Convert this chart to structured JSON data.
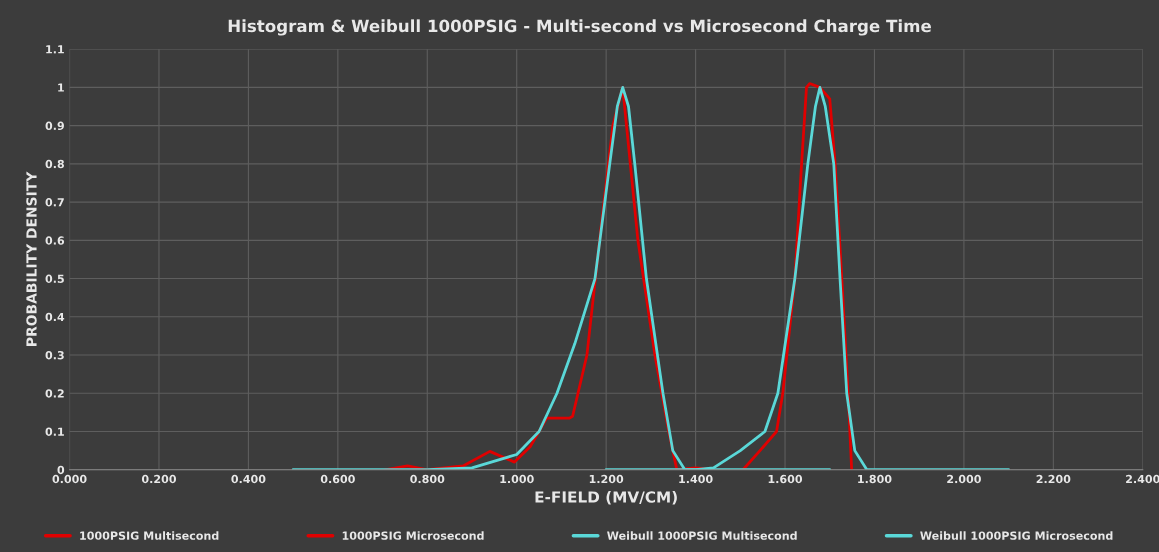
{
  "chart_data": {
    "type": "line",
    "title": "Histogram & Weibull 1000PSIG - Multi-second vs Microsecond Charge Time",
    "xlabel": "E-FIELD (MV/CM)",
    "ylabel": "PROBABILITY DENSITY",
    "xlim": [
      0,
      2.4
    ],
    "ylim": [
      0,
      1.1
    ],
    "xticks": [
      {
        "value": 0,
        "label": "0.000"
      },
      {
        "value": 0.2,
        "label": "0.200"
      },
      {
        "value": 0.4,
        "label": "0.400"
      },
      {
        "value": 0.6,
        "label": "0.600"
      },
      {
        "value": 0.8,
        "label": "0.800"
      },
      {
        "value": 1.0,
        "label": "1.000"
      },
      {
        "value": 1.2,
        "label": "1.200"
      },
      {
        "value": 1.4,
        "label": "1.400"
      },
      {
        "value": 1.6,
        "label": "1.600"
      },
      {
        "value": 1.8,
        "label": "1.800"
      },
      {
        "value": 2.0,
        "label": "2.000"
      },
      {
        "value": 2.2,
        "label": "2.200"
      },
      {
        "value": 2.4,
        "label": "2.400"
      }
    ],
    "yticks": [
      0,
      0.1,
      0.2,
      0.3,
      0.4,
      0.5,
      0.6,
      0.7,
      0.8,
      0.9,
      1,
      1.1
    ],
    "grid": true,
    "legend": "bottom",
    "marker": "none",
    "line_style": "solid",
    "series": [
      {
        "name": "1000PSIG Multisecond",
        "color": "#e00000",
        "x": [
          0.705,
          0.756,
          0.8,
          0.88,
          0.94,
          0.995,
          1.03,
          1.067,
          1.118,
          1.125,
          1.157,
          1.186,
          1.215,
          1.237,
          1.271,
          1.309,
          1.34,
          1.358,
          1.4,
          1.44
        ],
        "values": [
          0,
          0.01,
          0,
          0.01,
          0.048,
          0.02,
          0.06,
          0.135,
          0.135,
          0.14,
          0.3,
          0.607,
          0.9,
          1.0,
          0.6,
          0.3,
          0.1,
          0,
          0.005,
          0
        ]
      },
      {
        "name": "1000PSIG Microsecond",
        "color": "#e00000",
        "x": [
          1.506,
          1.544,
          1.581,
          1.595,
          1.622,
          1.637,
          1.648,
          1.655,
          1.678,
          1.7,
          1.712,
          1.727,
          1.741,
          1.749
        ],
        "values": [
          0,
          0.05,
          0.1,
          0.2,
          0.5,
          0.8,
          1.0,
          1.01,
          1.0,
          0.97,
          0.8,
          0.5,
          0.2,
          0
        ]
      },
      {
        "name": "Weibull 1000PSIG Multisecond",
        "color": "#5ad8d8",
        "x": [
          0.5,
          0.8,
          0.9,
          1.0,
          1.05,
          1.09,
          1.13,
          1.175,
          1.208,
          1.225,
          1.237,
          1.25,
          1.264,
          1.29,
          1.327,
          1.349,
          1.376,
          1.4,
          1.7
        ],
        "values": [
          0,
          0,
          0.005,
          0.04,
          0.1,
          0.2,
          0.33,
          0.5,
          0.8,
          0.95,
          1.0,
          0.95,
          0.8,
          0.5,
          0.2,
          0.05,
          0,
          0,
          0
        ]
      },
      {
        "name": "Weibull 1000PSIG Microsecond",
        "color": "#5ad8d8",
        "x": [
          1.2,
          1.4,
          1.44,
          1.5,
          1.555,
          1.584,
          1.622,
          1.651,
          1.668,
          1.678,
          1.69,
          1.709,
          1.723,
          1.738,
          1.756,
          1.783,
          2.1
        ],
        "values": [
          0,
          0,
          0.005,
          0.05,
          0.1,
          0.2,
          0.5,
          0.8,
          0.95,
          1.0,
          0.95,
          0.8,
          0.5,
          0.2,
          0.05,
          0,
          0
        ]
      }
    ]
  }
}
